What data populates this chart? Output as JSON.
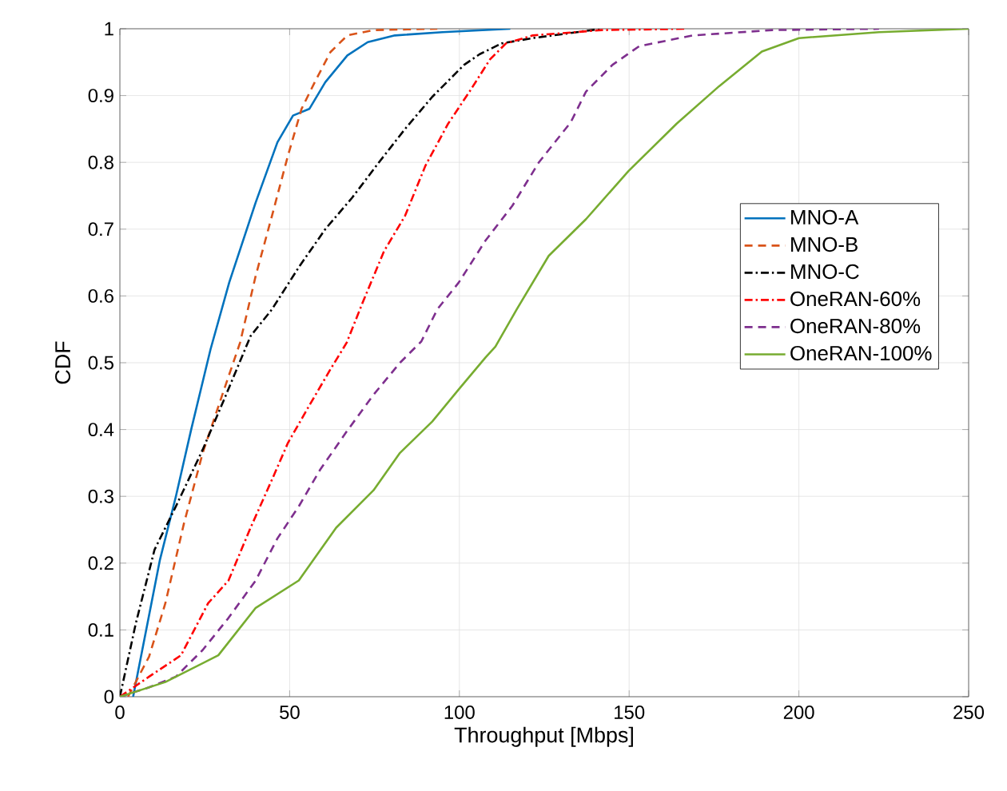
{
  "chart_data": {
    "type": "line",
    "xlabel": "Throughput [Mbps]",
    "ylabel": "CDF",
    "xlim": [
      0,
      250
    ],
    "ylim": [
      0,
      1
    ],
    "xticks": [
      0,
      50,
      100,
      150,
      200,
      250
    ],
    "yticks": [
      0,
      0.1,
      0.2,
      0.3,
      0.4,
      0.5,
      0.6,
      0.7,
      0.8,
      0.9,
      1
    ],
    "grid": true,
    "legend": "right",
    "marker": "none",
    "series": [
      {
        "name": "MNO-A",
        "color": "#0072bd",
        "line_style": "solid",
        "x": [
          3.9,
          11.8,
          16.5,
          21,
          26.7,
          32.2,
          40,
          46.4,
          51,
          55.8,
          60.5,
          67,
          73,
          81,
          95,
          115
        ],
        "values": [
          0,
          0.205,
          0.3,
          0.4,
          0.52,
          0.62,
          0.74,
          0.83,
          0.87,
          0.88,
          0.92,
          0.96,
          0.98,
          0.99,
          0.995,
          1
        ]
      },
      {
        "name": "MNO-B",
        "color": "#d95319",
        "line_style": "dashed",
        "x": [
          2.4,
          8.6,
          13.4,
          18.9,
          24.4,
          30.7,
          35.4,
          40,
          44.8,
          49.5,
          53.5,
          57.4,
          62,
          67,
          74.7,
          93.5
        ],
        "values": [
          0,
          0.06,
          0.14,
          0.26,
          0.365,
          0.46,
          0.53,
          0.63,
          0.72,
          0.81,
          0.88,
          0.92,
          0.965,
          0.99,
          0.998,
          1
        ]
      },
      {
        "name": "MNO-C",
        "color": "#000000",
        "line_style": "dashdot",
        "x": [
          0,
          4.7,
          10.2,
          16.5,
          24.4,
          30.7,
          38.5,
          44.8,
          52.7,
          60.5,
          68.4,
          76.3,
          84,
          92,
          101.4,
          106,
          112.4,
          121.6,
          142
        ],
        "values": [
          0,
          0.11,
          0.22,
          0.285,
          0.37,
          0.445,
          0.54,
          0.58,
          0.643,
          0.7,
          0.747,
          0.8,
          0.85,
          0.898,
          0.946,
          0.962,
          0.978,
          0.986,
          1
        ]
      },
      {
        "name": "OneRAN-60%",
        "color": "#ff0000",
        "line_style": "dashdot",
        "x": [
          0,
          8.6,
          18,
          26,
          32,
          38.5,
          44.8,
          49.5,
          55.8,
          62,
          66.8,
          71.5,
          77.8,
          84,
          90,
          96.7,
          103,
          109,
          113.7,
          121.6,
          142,
          167
        ],
        "values": [
          0,
          0.03,
          0.062,
          0.14,
          0.174,
          0.253,
          0.325,
          0.38,
          0.436,
          0.49,
          0.53,
          0.59,
          0.667,
          0.72,
          0.795,
          0.858,
          0.906,
          0.954,
          0.978,
          0.99,
          0.998,
          1
        ]
      },
      {
        "name": "OneRAN-80%",
        "color": "#7e2f8e",
        "line_style": "dashed",
        "x": [
          0,
          8.6,
          16.5,
          24.4,
          32,
          40,
          46.4,
          52.7,
          59,
          66.8,
          74.7,
          82.5,
          88.8,
          93.5,
          99.8,
          107.7,
          115.6,
          123.4,
          132.8,
          137.3,
          145.1,
          153,
          168.7,
          192.2,
          223.6
        ],
        "values": [
          0,
          0.014,
          0.03,
          0.07,
          0.118,
          0.174,
          0.237,
          0.285,
          0.34,
          0.397,
          0.452,
          0.5,
          0.532,
          0.58,
          0.62,
          0.683,
          0.735,
          0.8,
          0.86,
          0.906,
          0.946,
          0.974,
          0.99,
          0.998,
          1
        ]
      },
      {
        "name": "OneRAN-100%",
        "color": "#77ac30",
        "line_style": "solid",
        "x": [
          0,
          13.4,
          29,
          40,
          52.7,
          63.7,
          74.7,
          82.5,
          92,
          99.8,
          107.7,
          110.6,
          116.9,
          126.3,
          137.3,
          149.8,
          164,
          176.5,
          189.1,
          200,
          223.6,
          250
        ],
        "values": [
          0,
          0.022,
          0.062,
          0.133,
          0.174,
          0.253,
          0.309,
          0.365,
          0.412,
          0.46,
          0.508,
          0.524,
          0.58,
          0.66,
          0.715,
          0.787,
          0.858,
          0.914,
          0.966,
          0.986,
          0.995,
          1
        ]
      }
    ]
  }
}
